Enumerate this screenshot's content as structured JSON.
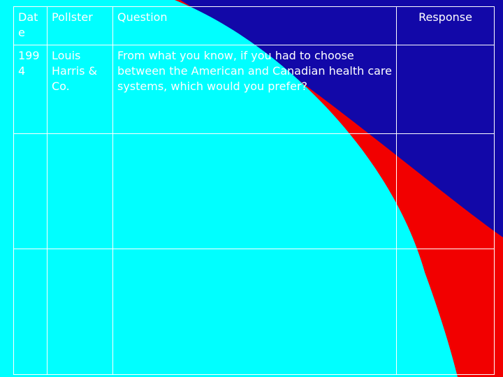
{
  "colors": {
    "background_blue": "#1208A8",
    "arc_red": "#F20000",
    "arc_cyan": "#00FFFF",
    "text": "#FFFFFF",
    "grid": "#FFFFFF"
  },
  "table": {
    "headers": {
      "date": "Date",
      "pollster": "Pollster",
      "question": "Question",
      "response": "Response"
    },
    "rows": [
      {
        "date": "1994",
        "pollster": "Louis Harris & Co.",
        "question": "From what you know, if you had to choose between the American and Canadian health care systems, which would you prefer?",
        "response": ""
      },
      {
        "date": "",
        "pollster": "",
        "question": "",
        "response": ""
      },
      {
        "date": "",
        "pollster": "",
        "question": "",
        "response": ""
      }
    ]
  }
}
